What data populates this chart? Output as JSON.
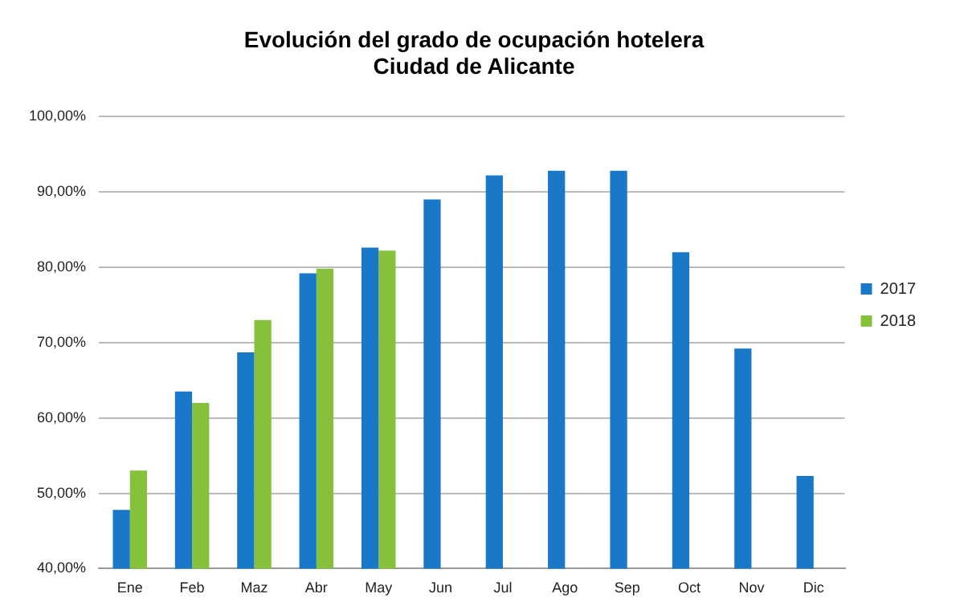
{
  "chart_data": {
    "type": "bar",
    "title": [
      "Evolución del grado de ocupación hotelera",
      "Ciudad de Alicante"
    ],
    "categories": [
      "Ene",
      "Feb",
      "Maz",
      "Abr",
      "May",
      "Jun",
      "Jul",
      "Ago",
      "Sep",
      "Oct",
      "Nov",
      "Dic"
    ],
    "series": [
      {
        "name": "2017",
        "color": "#1a78c8",
        "values": [
          47.8,
          63.5,
          68.7,
          79.2,
          82.6,
          89.0,
          92.2,
          92.8,
          92.8,
          82.0,
          69.2,
          52.3
        ]
      },
      {
        "name": "2018",
        "color": "#86c13c",
        "values": [
          53.0,
          62.0,
          73.0,
          79.8,
          82.2,
          null,
          null,
          null,
          null,
          null,
          null,
          null
        ]
      }
    ],
    "ylim": [
      40,
      100
    ],
    "yticks": [
      {
        "value": 40,
        "label": "40,00%"
      },
      {
        "value": 50,
        "label": "50,00%"
      },
      {
        "value": 60,
        "label": "60,00%"
      },
      {
        "value": 70,
        "label": "70,00%"
      },
      {
        "value": 80,
        "label": "80,00%"
      },
      {
        "value": 90,
        "label": "90,00%"
      },
      {
        "value": 100,
        "label": "100,00%"
      }
    ],
    "grid": "y",
    "legend": "right"
  }
}
